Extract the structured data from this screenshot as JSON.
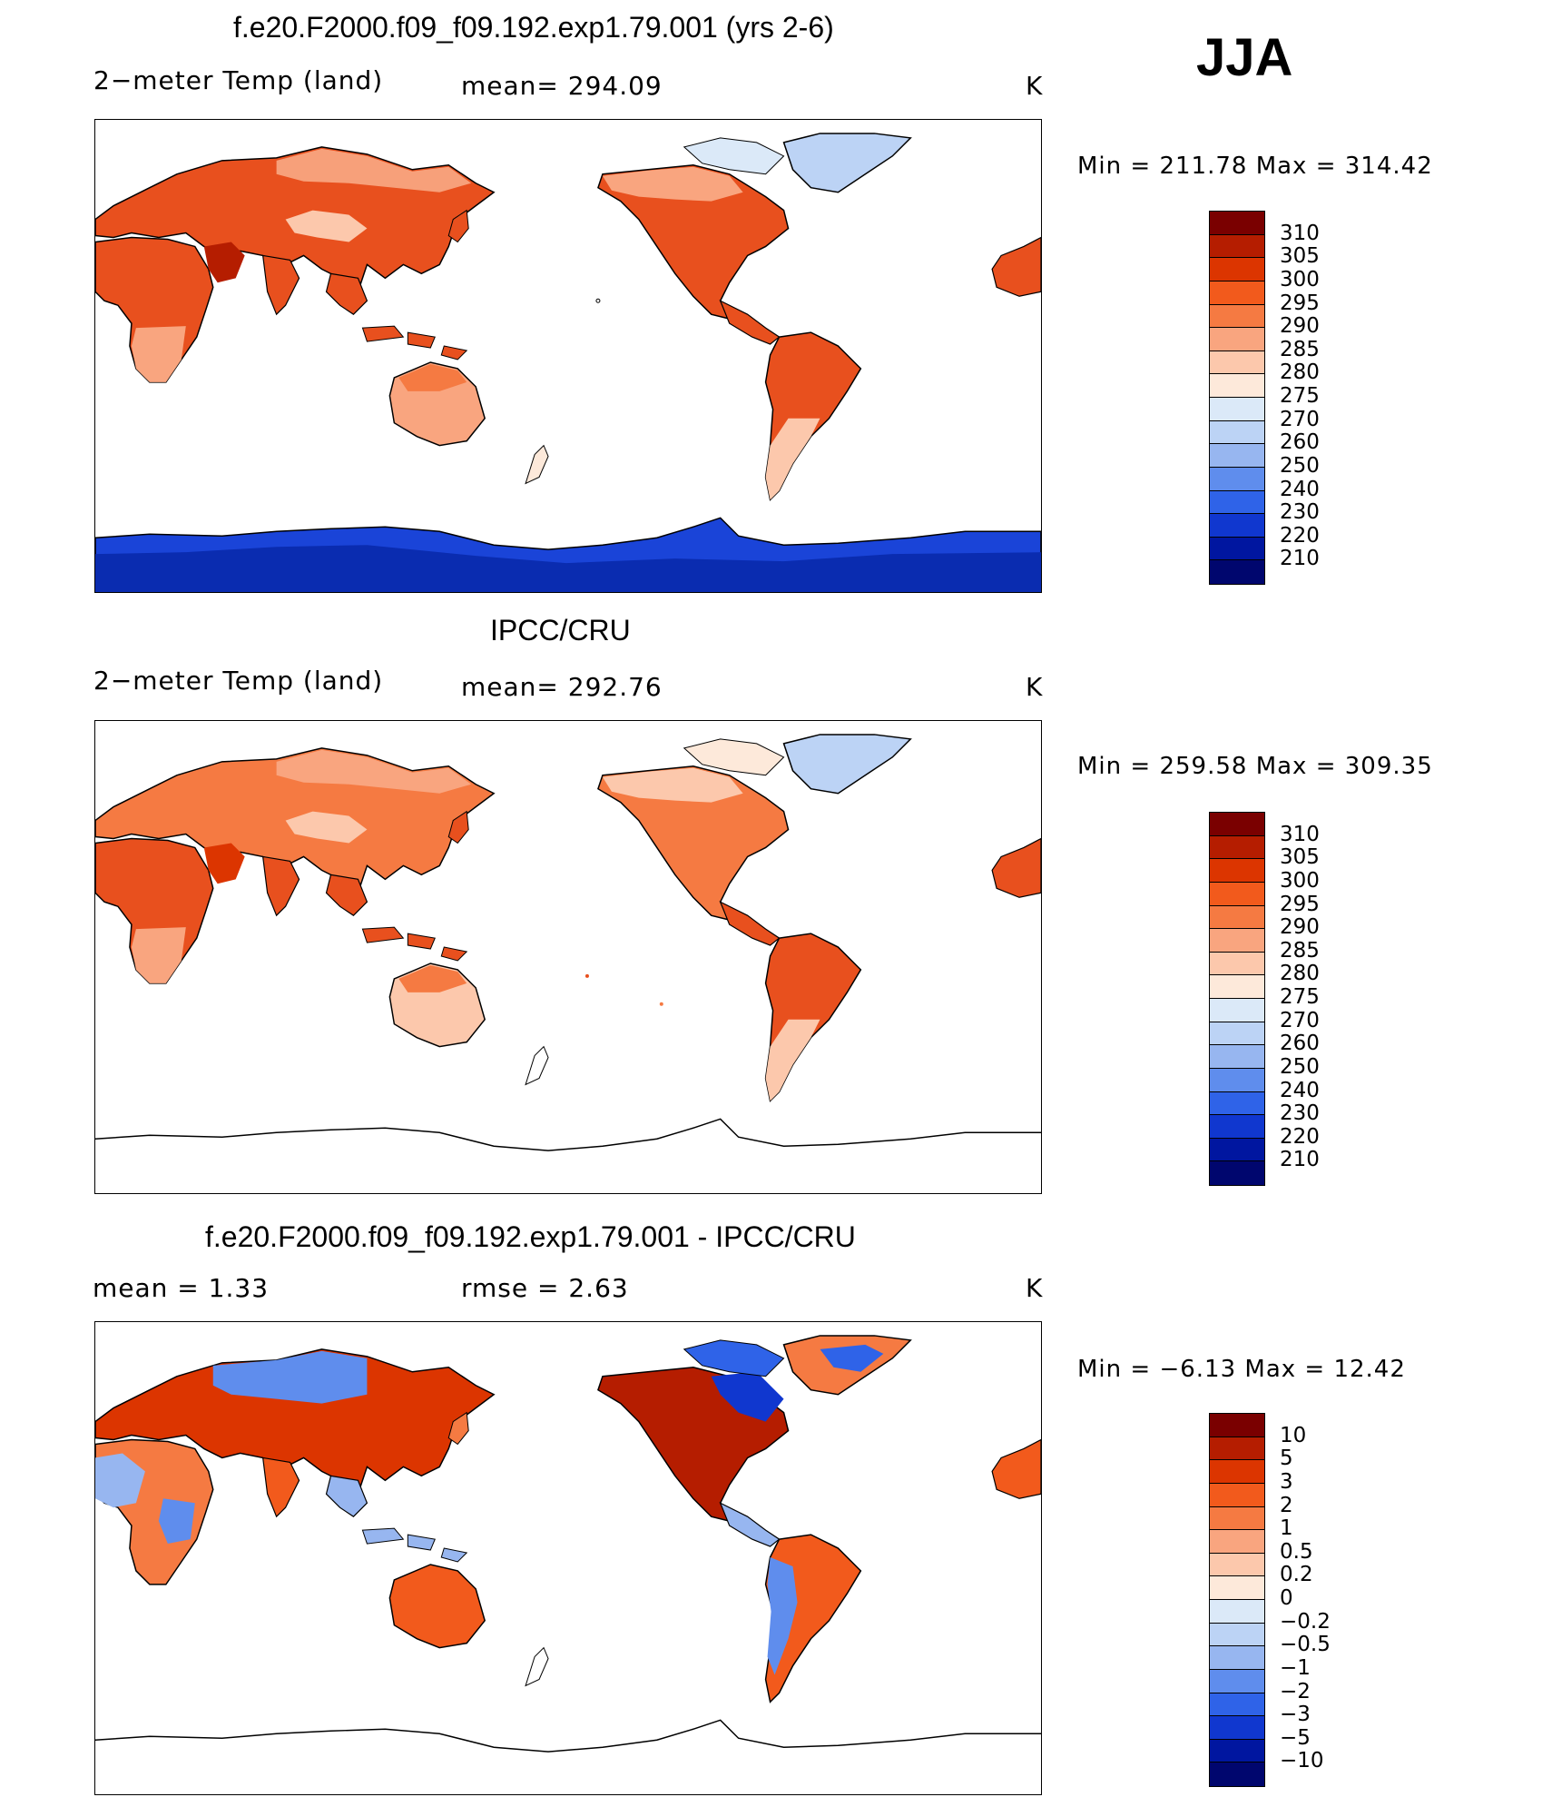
{
  "season": "JJA",
  "panels": [
    {
      "title": "f.e20.F2000.f09_f09.192.exp1.79.001 (yrs 2-6)",
      "left_label": "2−meter Temp (land)",
      "center_label": "mean=  294.09",
      "units": "K",
      "minmax": "Min  =  211.78  Max  =  314.42",
      "levels": [
        "310",
        "305",
        "300",
        "295",
        "290",
        "285",
        "280",
        "275",
        "270",
        "260",
        "250",
        "240",
        "230",
        "220",
        "210"
      ],
      "colors": [
        "#7a0000",
        "#b51d00",
        "#dc3500",
        "#f25a1c",
        "#f57a42",
        "#f9a57f",
        "#fcc8ac",
        "#fde9da",
        "#dbe9f8",
        "#bcd3f5",
        "#97b6f0",
        "#5f8ded",
        "#2f63e8",
        "#1037cf",
        "#0016a0",
        "#00066e"
      ]
    },
    {
      "title": "IPCC/CRU",
      "left_label": "2−meter Temp (land)",
      "center_label": "mean=  292.76",
      "units": "K",
      "minmax": "Min  =  259.58  Max  =  309.35",
      "levels": [
        "310",
        "305",
        "300",
        "295",
        "290",
        "285",
        "280",
        "275",
        "270",
        "260",
        "250",
        "240",
        "230",
        "220",
        "210"
      ],
      "colors": [
        "#7a0000",
        "#b51d00",
        "#dc3500",
        "#f25a1c",
        "#f57a42",
        "#f9a57f",
        "#fcc8ac",
        "#fde9da",
        "#dbe9f8",
        "#bcd3f5",
        "#97b6f0",
        "#5f8ded",
        "#2f63e8",
        "#1037cf",
        "#0016a0",
        "#00066e"
      ]
    },
    {
      "title": "f.e20.F2000.f09_f09.192.exp1.79.001 - IPCC/CRU",
      "left_label": "mean  =     1.33",
      "center_label": "rmse  =     2.63",
      "units": "K",
      "minmax": "Min  =    −6.13  Max  =     12.42",
      "levels": [
        "10",
        "5",
        "3",
        "2",
        "1",
        "0.5",
        "0.2",
        "0",
        "−0.2",
        "−0.5",
        "−1",
        "−2",
        "−3",
        "−5",
        "−10"
      ],
      "colors": [
        "#7a0000",
        "#b51d00",
        "#dc3500",
        "#f25a1c",
        "#f57a42",
        "#f9a57f",
        "#fcc8ac",
        "#fde9da",
        "#dbe9f8",
        "#bcd3f5",
        "#97b6f0",
        "#5f8ded",
        "#2f63e8",
        "#1037cf",
        "#0016a0",
        "#00066e"
      ]
    }
  ]
}
